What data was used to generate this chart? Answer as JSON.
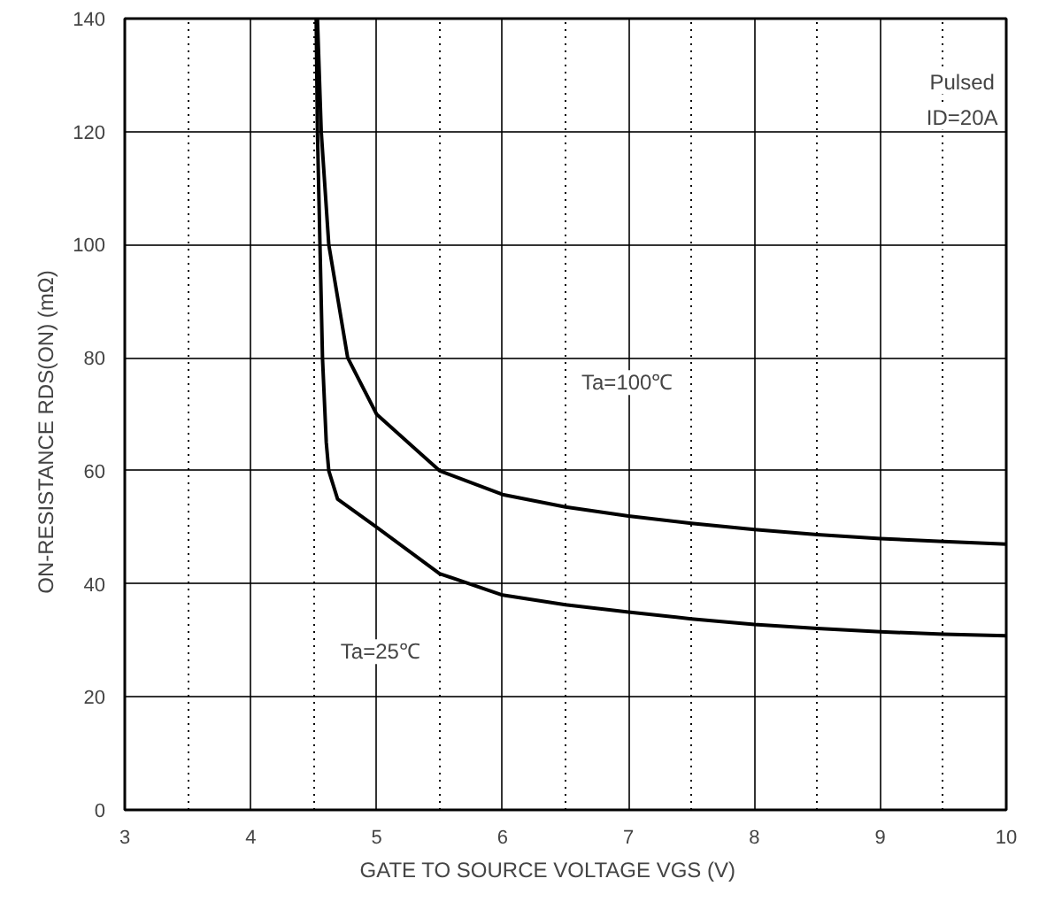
{
  "chart_data": {
    "type": "line",
    "xlabel": "GATE TO SOURCE VOLTAGE    VGS    (V)",
    "ylabel": "ON-RESISTANCE    RDS(ON)    (mΩ)",
    "xlim": [
      3,
      10
    ],
    "xticks": [
      3,
      4,
      5,
      6,
      7,
      8,
      9,
      10
    ],
    "ylim": [
      0,
      140
    ],
    "yticks": [
      0,
      20,
      40,
      60,
      80,
      100,
      120,
      140
    ],
    "grid": true,
    "marker": "none",
    "line_style": "solid",
    "annotations": [
      "Ta=100℃",
      "Ta=25℃",
      "Pulsed",
      "ID=20A"
    ],
    "series": [
      {
        "color": "#000000",
        "x": [
          4.52,
          4.53,
          4.55,
          4.57,
          4.6,
          4.62,
          4.69,
          5.0,
          5.5,
          6.0,
          6.5,
          7.0,
          7.5,
          8.0,
          8.5,
          9.0,
          9.5,
          10.0
        ],
        "values": [
          140,
          120,
          100,
          80,
          65,
          60,
          55,
          50,
          41.8,
          38,
          36.3,
          35,
          33.8,
          32.8,
          32.1,
          31.5,
          31.1,
          30.8
        ]
      },
      {
        "color": "#000000",
        "x": [
          4.53,
          4.56,
          4.62,
          4.77,
          5.0,
          5.5,
          6.0,
          6.5,
          7.0,
          7.5,
          8.0,
          8.5,
          9.0,
          9.5,
          10.0
        ],
        "values": [
          140,
          120,
          100,
          80,
          70,
          60,
          55.8,
          53.6,
          52,
          50.7,
          49.6,
          48.7,
          48,
          47.5,
          47
        ]
      }
    ]
  }
}
